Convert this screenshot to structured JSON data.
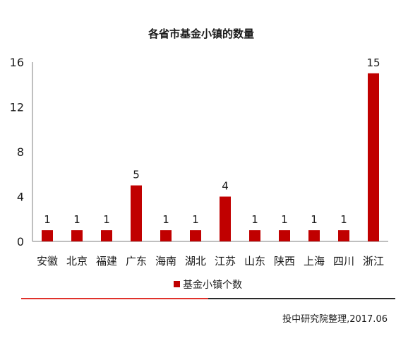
{
  "chart_data": {
    "type": "bar",
    "title": "各省市基金小镇的数量",
    "categories": [
      "安徽",
      "北京",
      "福建",
      "广东",
      "海南",
      "湖北",
      "江苏",
      "山东",
      "陕西",
      "上海",
      "四川",
      "浙江"
    ],
    "series": [
      {
        "name": "基金小镇个数",
        "values": [
          1,
          1,
          1,
          5,
          1,
          1,
          4,
          1,
          1,
          1,
          1,
          15
        ]
      }
    ],
    "ylim": [
      0,
      16
    ],
    "yticks": [
      "0",
      "4",
      "8",
      "12",
      "16"
    ],
    "data_labels": [
      "1",
      "1",
      "1",
      "5",
      "1",
      "1",
      "4",
      "1",
      "1",
      "1",
      "1",
      "15"
    ],
    "grid": false,
    "legend_position": "bottom",
    "bar_color": "#c00000"
  },
  "footer": {
    "source": "投中研究院整理,2017.06",
    "line_color_left": "#e0312b",
    "line_color_right": "#2a2a2a"
  }
}
